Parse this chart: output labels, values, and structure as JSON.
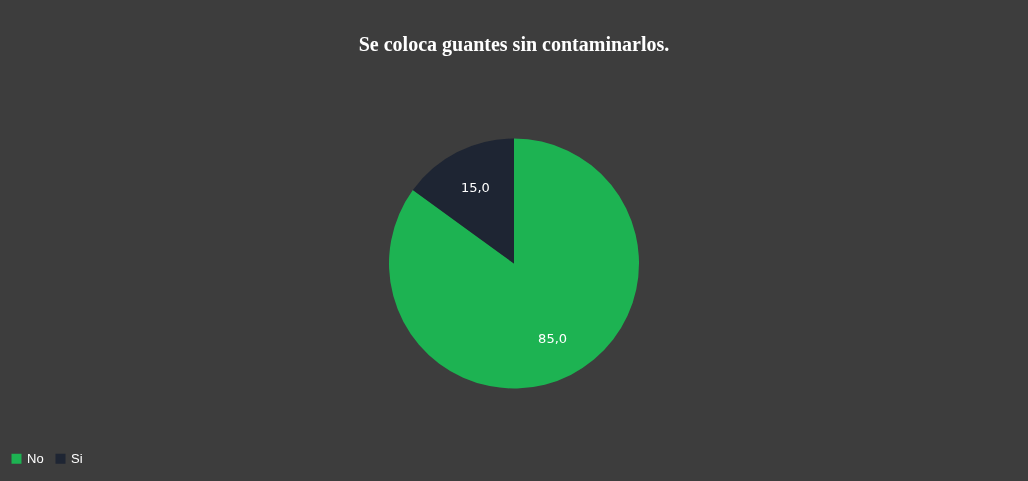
{
  "chart_data": {
    "type": "pie",
    "title": "Se coloca guantes sin contaminarlos.",
    "categories": [
      "No",
      "Si"
    ],
    "values": [
      85,
      15
    ],
    "colors": [
      "#1db352",
      "#1e2533"
    ],
    "value_labels": [
      "85,0",
      "15,0"
    ],
    "legend": "bottom"
  }
}
